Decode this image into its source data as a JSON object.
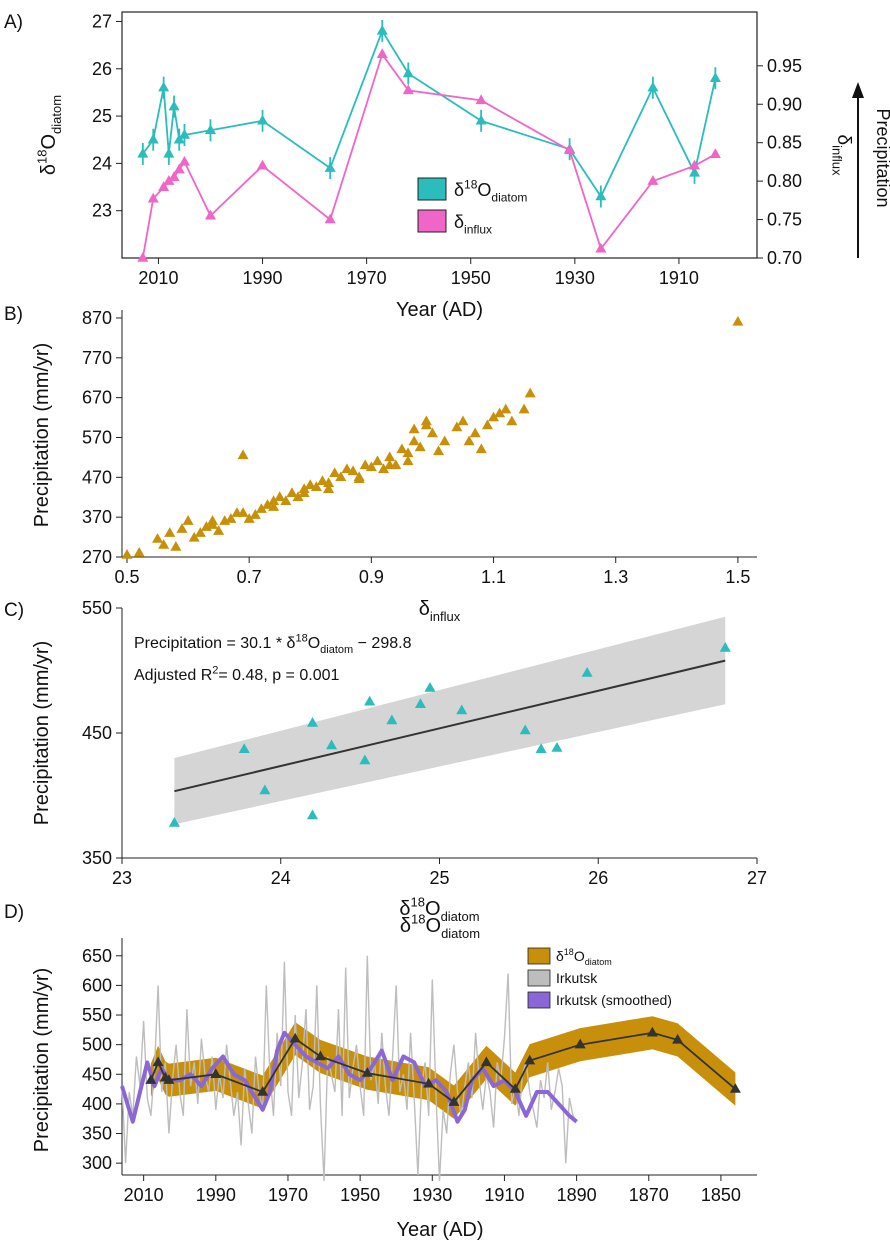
{
  "colors": {
    "teal": "#2bbcbc",
    "pink": "#f065c8",
    "gold": "#c8900a",
    "gray": "#bdbdbd",
    "purple": "#8a66d6",
    "dark": "#333333",
    "band": "#d0d0d0"
  },
  "panels": {
    "A": "A)",
    "B": "B)",
    "C": "C)",
    "D": "D)"
  },
  "chart_data": [
    {
      "panel": "A",
      "type": "line",
      "xlabel": "Year (AD)",
      "xlim": [
        2017,
        1895
      ],
      "xticks": [
        "2010",
        "1990",
        "1970",
        "1950",
        "1930",
        "1910"
      ],
      "ylabel_left": {
        "main": "δ",
        "sup": "18",
        "base": "O",
        "sub": "diatom"
      },
      "ylim_left": [
        22,
        27.2
      ],
      "yticks_left": [
        "23",
        "24",
        "25",
        "26",
        "27"
      ],
      "ylabel_right": {
        "main": "δ",
        "sub": "influx"
      },
      "ylim_right": [
        0.7,
        1.02
      ],
      "yticks_right": [
        "0.70",
        "0.75",
        "0.80",
        "0.85",
        "0.90",
        "0.95"
      ],
      "arrow_label": "Precipitation",
      "legend": [
        {
          "main": "δ",
          "sup": "18",
          "base": "O",
          "sub": "diatom",
          "color": "teal"
        },
        {
          "main": "δ",
          "sup": "",
          "base": "",
          "sub": "influx",
          "color": "pink"
        }
      ],
      "series": [
        {
          "name": "δ18Odiatom",
          "axis": "left",
          "color": "teal",
          "x": [
            2013,
            2011,
            2009,
            2008,
            2007,
            2006,
            2005,
            2000,
            1990,
            1977,
            1967,
            1962,
            1948,
            1931,
            1925,
            1915,
            1907,
            1903
          ],
          "y": [
            24.2,
            24.5,
            25.6,
            24.2,
            25.2,
            24.5,
            24.6,
            24.7,
            24.9,
            23.9,
            26.8,
            25.9,
            24.9,
            24.3,
            23.3,
            25.6,
            23.8,
            25.8
          ]
        },
        {
          "name": "δinflux",
          "axis": "right",
          "color": "pink",
          "x": [
            2013,
            2011,
            2009,
            2008,
            2007,
            2006,
            2005,
            2000,
            1990,
            1977,
            1967,
            1962,
            1948,
            1931,
            1925,
            1915,
            1907,
            1903
          ],
          "y": [
            0.7,
            0.777,
            0.792,
            0.8,
            0.805,
            0.815,
            0.825,
            0.755,
            0.82,
            0.75,
            0.965,
            0.918,
            0.905,
            0.84,
            0.712,
            0.8,
            0.82,
            0.835
          ]
        }
      ]
    },
    {
      "panel": "B",
      "type": "scatter",
      "xlabel": {
        "main": "δ",
        "sub": "influx"
      },
      "ylabel": "Precipitation (mm/yr)",
      "xlim": [
        0.5,
        1.51
      ],
      "ylim": [
        270,
        890
      ],
      "xticks": [
        "0.5",
        "0.7",
        "0.9",
        "1.1",
        "1.3",
        "1.5"
      ],
      "yticks": [
        "270",
        "370",
        "470",
        "570",
        "670",
        "770",
        "870"
      ],
      "color": "gold",
      "x": [
        0.5,
        0.52,
        0.55,
        0.56,
        0.57,
        0.58,
        0.59,
        0.6,
        0.61,
        0.62,
        0.63,
        0.64,
        0.65,
        0.66,
        0.67,
        0.68,
        0.69,
        0.7,
        0.71,
        0.72,
        0.73,
        0.74,
        0.75,
        0.76,
        0.77,
        0.78,
        0.79,
        0.8,
        0.81,
        0.82,
        0.83,
        0.84,
        0.85,
        0.86,
        0.87,
        0.88,
        0.89,
        0.9,
        0.91,
        0.92,
        0.93,
        0.94,
        0.95,
        0.96,
        0.97,
        0.98,
        0.99,
        1.0,
        1.02,
        1.04,
        1.05,
        1.07,
        1.09,
        1.1,
        1.12,
        1.13,
        1.15,
        1.16,
        0.69,
        0.97,
        0.99,
        1.08,
        1.5,
        0.64,
        0.74,
        0.79,
        0.83,
        0.88,
        0.93,
        0.96,
        1.01,
        1.06,
        1.11
      ],
      "y": [
        275,
        280,
        315,
        300,
        330,
        295,
        340,
        360,
        318,
        330,
        345,
        360,
        335,
        360,
        365,
        380,
        525,
        365,
        375,
        390,
        400,
        395,
        420,
        410,
        430,
        420,
        440,
        450,
        445,
        460,
        455,
        480,
        470,
        490,
        485,
        470,
        500,
        495,
        510,
        490,
        520,
        500,
        540,
        530,
        560,
        545,
        600,
        580,
        560,
        595,
        610,
        580,
        600,
        620,
        640,
        610,
        640,
        680,
        380,
        590,
        610,
        540,
        860,
        350,
        410,
        430,
        440,
        465,
        500,
        510,
        535,
        560,
        630
      ]
    },
    {
      "panel": "C",
      "type": "scatter",
      "equation": {
        "lhs": "Precipitation = 30.1 * δ",
        "sup": "18",
        "base": "O",
        "sub": "diatom",
        "rhs": " − 298.8"
      },
      "stats": {
        "pre": "Adjusted R",
        "sup": "2",
        "post": "= 0.48, p = 0.001"
      },
      "xlabel": {
        "main": "δ",
        "sup": "18",
        "base": "O",
        "sub": "diatom"
      },
      "ylabel": "Precipitation (mm/yr)",
      "xlim": [
        23,
        27
      ],
      "ylim": [
        350,
        550
      ],
      "xticks": [
        "23",
        "24",
        "25",
        "26",
        "27"
      ],
      "yticks": [
        "350",
        "450",
        "550"
      ],
      "color": "teal",
      "x": [
        23.33,
        23.77,
        23.9,
        24.2,
        24.2,
        24.32,
        24.53,
        24.56,
        24.7,
        24.88,
        24.94,
        25.14,
        25.54,
        25.64,
        25.74,
        25.93,
        26.8
      ],
      "y": [
        378,
        437,
        404,
        458,
        384,
        440,
        428,
        475,
        460,
        473,
        486,
        468,
        452,
        437,
        438,
        498,
        518
      ],
      "fit": {
        "slope": 30.1,
        "intercept": -298.8,
        "x": [
          23.33,
          26.8
        ],
        "ci_low": [
          377,
          473
        ],
        "ci_high": [
          430,
          543
        ]
      }
    },
    {
      "panel": "D",
      "type": "line",
      "title": {
        "main": "δ",
        "sup": "18",
        "base": "O",
        "sub": "diatom"
      },
      "xlabel": "Year (AD)",
      "ylabel": "Precipitation (mm/yr)",
      "xlim": [
        2016,
        1840
      ],
      "ylim": [
        280,
        680
      ],
      "xticks": [
        "2010",
        "1990",
        "1970",
        "1950",
        "1930",
        "1910",
        "1890",
        "1870",
        "1850"
      ],
      "yticks": [
        "300",
        "350",
        "400",
        "450",
        "500",
        "550",
        "600",
        "650"
      ],
      "legend": [
        {
          "main": "δ",
          "sup": "18",
          "base": "O",
          "sub": "diatom",
          "color": "gold"
        },
        {
          "main": "Irkutsk",
          "sup": "",
          "base": "",
          "sub": "",
          "color": "gray"
        },
        {
          "main": "Irkutsk (smoothed)",
          "sup": "",
          "base": "",
          "sub": "",
          "color": "purple"
        }
      ],
      "series": [
        {
          "name": "δ18Odiatom",
          "color": "dark",
          "band_color": "gold",
          "band_half": 28,
          "x": [
            2008,
            2006,
            2004,
            2003,
            1990,
            1977,
            1968,
            1961,
            1948,
            1931,
            1924,
            1915,
            1907,
            1903,
            1889,
            1869,
            1862,
            1846
          ],
          "y": [
            440,
            470,
            444,
            440,
            450,
            420,
            510,
            480,
            452,
            434,
            403,
            470,
            425,
            473,
            500,
            520,
            508,
            425
          ]
        },
        {
          "name": "Irkutsk",
          "color": "gray",
          "x": [
            2016,
            2015,
            2014,
            2013,
            2012,
            2011,
            2010,
            2009,
            2008,
            2007,
            2006,
            2005,
            2004,
            2003,
            2002,
            2001,
            2000,
            1999,
            1998,
            1997,
            1996,
            1995,
            1994,
            1993,
            1992,
            1991,
            1990,
            1989,
            1988,
            1987,
            1986,
            1985,
            1984,
            1983,
            1982,
            1981,
            1980,
            1979,
            1978,
            1977,
            1976,
            1975,
            1974,
            1973,
            1972,
            1971,
            1970,
            1969,
            1968,
            1967,
            1966,
            1965,
            1964,
            1963,
            1962,
            1961,
            1960,
            1959,
            1958,
            1957,
            1956,
            1955,
            1954,
            1953,
            1952,
            1951,
            1950,
            1949,
            1948,
            1947,
            1946,
            1945,
            1944,
            1943,
            1942,
            1941,
            1940,
            1939,
            1938,
            1937,
            1936,
            1935,
            1934,
            1933,
            1932,
            1931,
            1930,
            1929,
            1928,
            1927,
            1926,
            1925,
            1924,
            1923,
            1922,
            1921,
            1920,
            1919,
            1918,
            1917,
            1916,
            1915,
            1914,
            1913,
            1912,
            1911,
            1910,
            1909,
            1908,
            1907,
            1906,
            1905,
            1904,
            1903,
            1902,
            1901,
            1900,
            1899,
            1898,
            1897,
            1896,
            1895,
            1894,
            1893,
            1892,
            1891,
            1890
          ],
          "y": [
            430,
            300,
            420,
            380,
            480,
            430,
            540,
            410,
            380,
            460,
            600,
            420,
            470,
            350,
            440,
            500,
            420,
            380,
            560,
            430,
            470,
            400,
            510,
            450,
            420,
            480,
            390,
            450,
            410,
            500,
            440,
            380,
            420,
            330,
            460,
            400,
            350,
            480,
            420,
            390,
            600,
            450,
            380,
            520,
            430,
            640,
            420,
            380,
            550,
            410,
            470,
            560,
            390,
            430,
            600,
            400,
            270,
            480,
            450,
            420,
            560,
            380,
            630,
            410,
            460,
            500,
            430,
            380,
            650,
            440,
            470,
            400,
            520,
            430,
            380,
            480,
            600,
            420,
            450,
            390,
            520,
            410,
            280,
            430,
            470,
            380,
            610,
            420,
            270,
            390,
            350,
            450,
            500,
            420,
            380,
            430,
            470,
            410,
            520,
            440,
            390,
            450,
            420,
            360,
            470,
            440,
            510,
            620,
            400,
            430,
            380,
            450,
            470,
            420,
            390,
            360,
            440,
            410,
            470,
            390,
            420,
            460,
            430,
            300,
            410,
            380,
            370
          ]
        },
        {
          "name": "Irkutsk (smoothed)",
          "color": "purple",
          "x": [
            2016,
            2013,
            2011,
            2009,
            2007,
            2005,
            2003,
            2000,
            1997,
            1994,
            1991,
            1988,
            1985,
            1982,
            1979,
            1977,
            1975,
            1973,
            1971,
            1968,
            1965,
            1962,
            1959,
            1956,
            1953,
            1950,
            1947,
            1944,
            1941,
            1938,
            1935,
            1932,
            1929,
            1926,
            1923,
            1921,
            1919,
            1916,
            1913,
            1910,
            1907,
            1904,
            1901,
            1898,
            1895,
            1892,
            1890
          ],
          "y": [
            430,
            370,
            420,
            470,
            430,
            460,
            440,
            440,
            450,
            430,
            460,
            480,
            450,
            440,
            410,
            390,
            420,
            490,
            520,
            500,
            480,
            470,
            460,
            480,
            450,
            440,
            460,
            490,
            440,
            480,
            470,
            430,
            440,
            420,
            370,
            390,
            440,
            460,
            430,
            440,
            420,
            380,
            420,
            420,
            400,
            380,
            370
          ]
        }
      ]
    }
  ]
}
